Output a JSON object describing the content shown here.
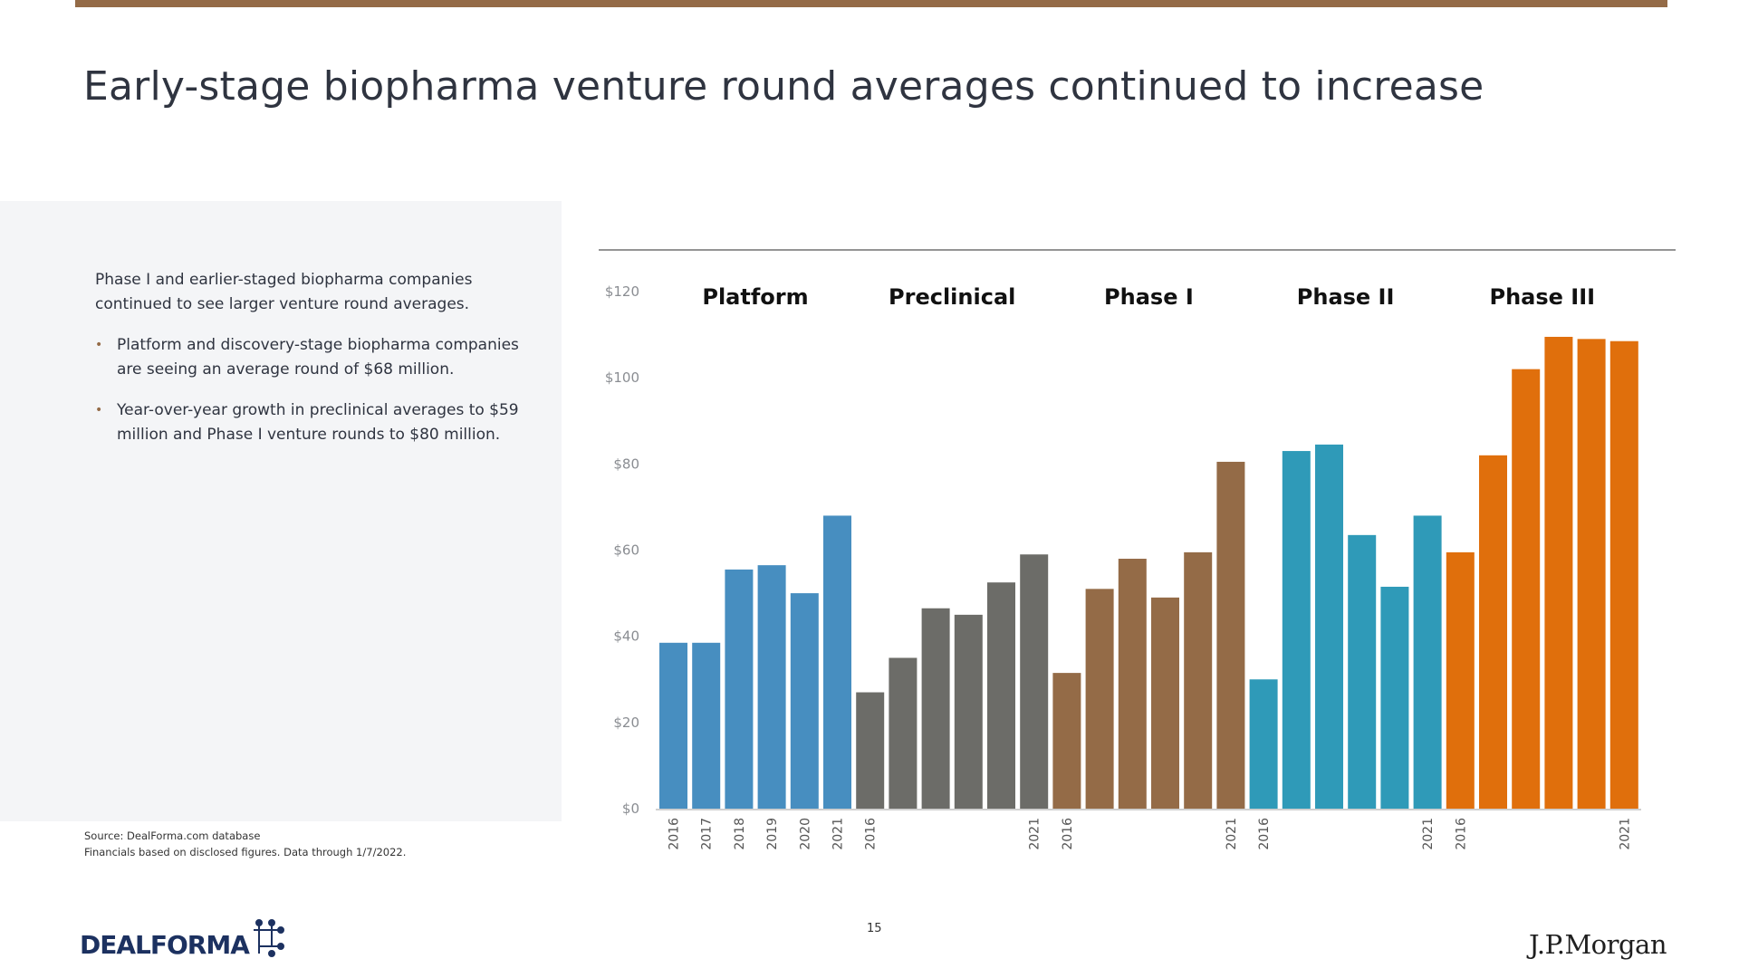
{
  "page": {
    "title": "Early-stage biopharma venture round averages continued to increase",
    "intro": "Phase I and earlier-staged biopharma companies continued to see larger venture round averages.",
    "bullets": [
      "Platform and discovery-stage biopharma companies are seeing an average round of $68 million.",
      "Year-over-year growth in preclinical averages to $59 million and Phase I venture rounds to $80 million."
    ],
    "source_line1": "Source: DealForma.com database",
    "source_line2": "Financials based on disclosed figures. Data through 1/7/2022.",
    "page_number": "15",
    "logo_left": "DEALFORMA",
    "logo_right": "J.P.Morgan"
  },
  "colors": {
    "accent": "#946b47",
    "platform": "#478ec0",
    "preclinical": "#6c6c68",
    "phase1": "#946b47",
    "phase2": "#2f9ab8",
    "phase3": "#e06f0c",
    "logo_navy": "#1c3160"
  },
  "chart_data": {
    "type": "bar",
    "ylim": [
      0,
      120
    ],
    "yticks": [
      0,
      20,
      40,
      60,
      80,
      100,
      120
    ],
    "ytick_labels": [
      "$0",
      "$20",
      "$40",
      "$60",
      "$80",
      "$100",
      "$120"
    ],
    "series": [
      {
        "name": "Platform",
        "color_key": "platform",
        "x": [
          "2016",
          "2017",
          "2018",
          "2019",
          "2020",
          "2021"
        ],
        "x_labels": [
          "2016",
          "2017",
          "2018",
          "2019",
          "2020",
          "2021"
        ],
        "values": [
          38.5,
          38.5,
          55.5,
          56.5,
          50,
          68
        ]
      },
      {
        "name": "Preclinical",
        "color_key": "preclinical",
        "x": [
          "2016",
          "2017",
          "2018",
          "2019",
          "2020",
          "2021"
        ],
        "x_labels": [
          "2016",
          "",
          "",
          "",
          "",
          "2021"
        ],
        "values": [
          27,
          35,
          46.5,
          45,
          52.5,
          59
        ]
      },
      {
        "name": "Phase I",
        "color_key": "phase1",
        "x": [
          "2016",
          "2017",
          "2018",
          "2019",
          "2020",
          "2021"
        ],
        "x_labels": [
          "2016",
          "",
          "",
          "",
          "",
          "2021"
        ],
        "values": [
          31.5,
          51,
          58,
          49,
          59.5,
          80.5
        ]
      },
      {
        "name": "Phase II",
        "color_key": "phase2",
        "x": [
          "2016",
          "2017",
          "2018",
          "2019",
          "2020",
          "2021"
        ],
        "x_labels": [
          "2016",
          "",
          "",
          "",
          "",
          "2021"
        ],
        "values": [
          30,
          83,
          84.5,
          63.5,
          51.5,
          68
        ]
      },
      {
        "name": "Phase III",
        "color_key": "phase3",
        "x": [
          "2016",
          "2017",
          "2018",
          "2019",
          "2020",
          "2021"
        ],
        "x_labels": [
          "2016",
          "",
          "",
          "",
          "",
          "2021"
        ],
        "values": [
          59.5,
          82,
          102,
          109.5,
          109,
          108.5
        ]
      }
    ],
    "grid": false,
    "legend": "group labels above bars"
  }
}
